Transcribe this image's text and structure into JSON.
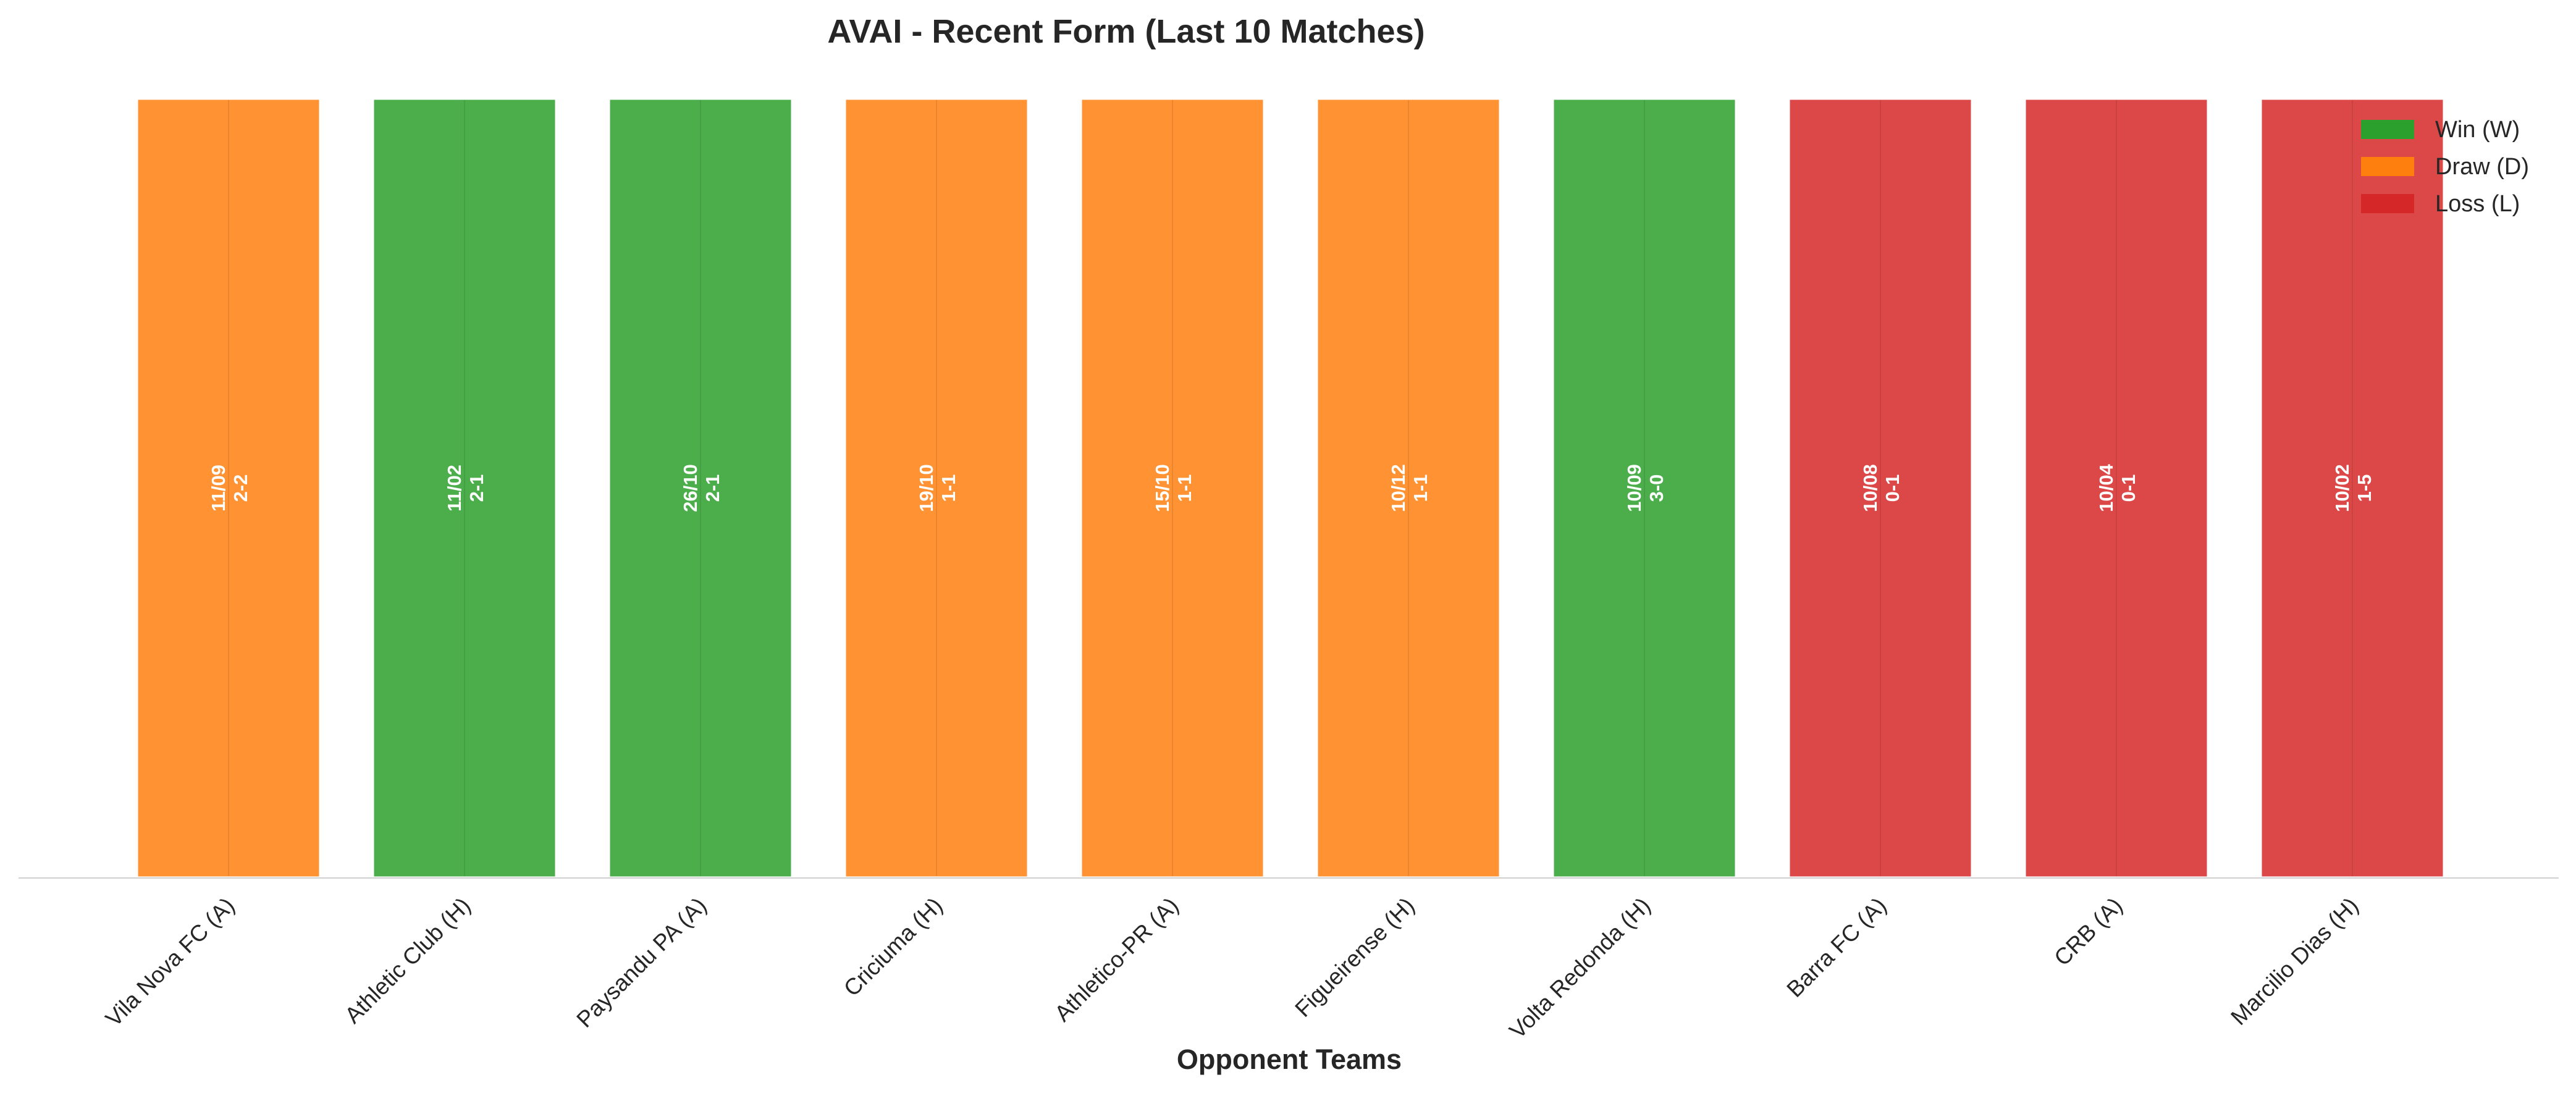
{
  "chart_data": {
    "type": "bar",
    "title": "AVAI - Recent Form (Last 10 Matches)",
    "xlabel": "Opponent Teams",
    "ylabel": "",
    "categories": [
      "Vila Nova FC (A)",
      "Athletic Club (H)",
      "Paysandu PA (A)",
      "Criciuma (H)",
      "Athletico-PR (A)",
      "Figueirense (H)",
      "Volta Redonda (H)",
      "Barra FC (A)",
      "CRB (A)",
      "Marcilio Dias (H)"
    ],
    "values": [
      1,
      1,
      1,
      1,
      1,
      1,
      1,
      1,
      1,
      1
    ],
    "results": [
      "D",
      "W",
      "W",
      "D",
      "D",
      "D",
      "W",
      "L",
      "L",
      "L"
    ],
    "dates": [
      "11/09",
      "11/02",
      "26/10",
      "19/10",
      "15/10",
      "10/12",
      "10/09",
      "10/08",
      "10/04",
      "10/02"
    ],
    "scores": [
      "2-2",
      "2-1",
      "2-1",
      "1-1",
      "1-1",
      "1-1",
      "3-0",
      "0-1",
      "0-1",
      "1-5"
    ],
    "result_colors": {
      "W": "#2ca02c",
      "D": "#ff7f0e",
      "L": "#d62728"
    },
    "legend": [
      {
        "key": "W",
        "label": "Win (W)"
      },
      {
        "key": "D",
        "label": "Draw (D)"
      },
      {
        "key": "L",
        "label": "Loss (L)"
      }
    ],
    "legend_position": "top-right",
    "grid": false
  }
}
